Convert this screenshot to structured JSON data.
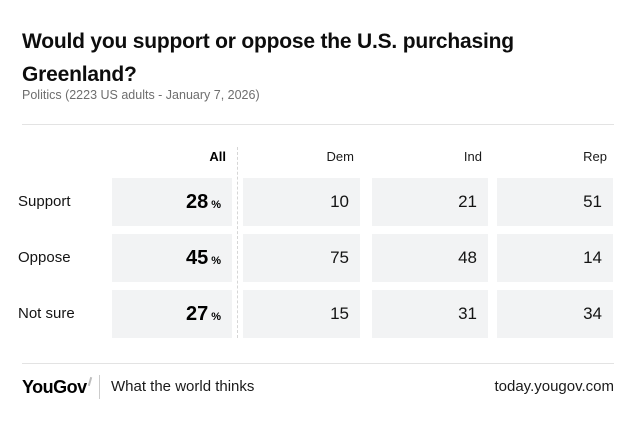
{
  "page": {
    "title": "Would you support or oppose the U.S. purchasing Greenland?",
    "subtitle": "Politics (2223 US adults - January 7, 2026)"
  },
  "chart_data": {
    "type": "table",
    "title": "Would you support or oppose the U.S. purchasing Greenland?",
    "subtitle": "Politics (2223 US adults - January 7, 2026)",
    "columns": [
      "All",
      "Dem",
      "Ind",
      "Rep"
    ],
    "rows": [
      {
        "label": "Support",
        "all": "28",
        "unit": "%",
        "dem": "10",
        "ind": "21",
        "rep": "51"
      },
      {
        "label": "Oppose",
        "all": "45",
        "unit": "%",
        "dem": "75",
        "ind": "48",
        "rep": "14"
      },
      {
        "label": "Not sure",
        "all": "27",
        "unit": "%",
        "dem": "15",
        "ind": "31",
        "rep": "34"
      }
    ]
  },
  "footer": {
    "logo_text": "YouGov",
    "tagline": "What the world thinks",
    "site": "today.yougov.com"
  },
  "colors": {
    "cell_background": "#f2f3f4",
    "divider": "#e3e3e3",
    "dashed_separator": "#d6d6d6",
    "subtitle_text": "#6e6e6e",
    "body_text": "#141414"
  }
}
